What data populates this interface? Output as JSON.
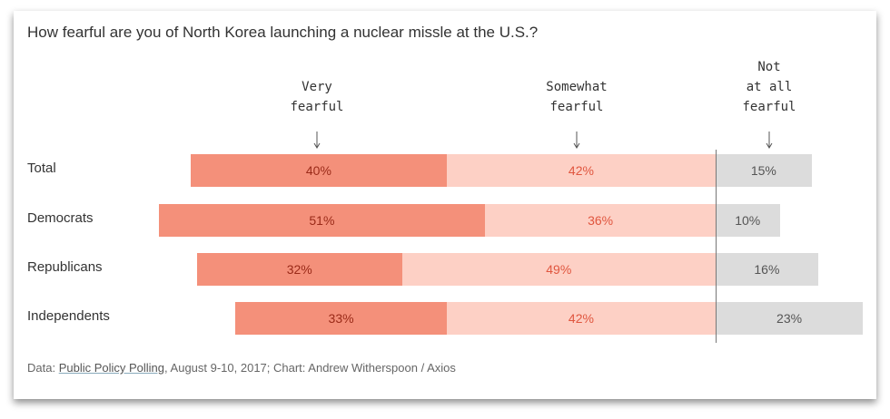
{
  "chart_data": {
    "type": "bar",
    "stacked": true,
    "diverging": true,
    "title": "How fearful are you of North Korea launching a nuclear missle at the U.S.?",
    "categories": [
      "Total",
      "Democrats",
      "Republicans",
      "Independents"
    ],
    "series": [
      {
        "name": "Very fearful",
        "header_lines": [
          "Very",
          "fearful"
        ],
        "values": [
          40,
          51,
          32,
          33
        ],
        "color": "#f4907a",
        "text_color": "#9a2a18"
      },
      {
        "name": "Somewhat fearful",
        "header_lines": [
          "Somewhat",
          "fearful"
        ],
        "values": [
          42,
          36,
          49,
          42
        ],
        "color": "#fdd0c5",
        "text_color": "#e0563f"
      },
      {
        "name": "Not at all fearful",
        "header_lines": [
          "Not",
          "at all",
          "fearful"
        ],
        "values": [
          15,
          10,
          16,
          23
        ],
        "color": "#dcdcdc",
        "text_color": "#555555"
      }
    ],
    "value_suffix": "%"
  },
  "source": {
    "prefix": "Data: ",
    "link": "Public Policy Polling",
    "suffix": ", August 9-10, 2017; Chart: Andrew Witherspoon / Axios"
  }
}
